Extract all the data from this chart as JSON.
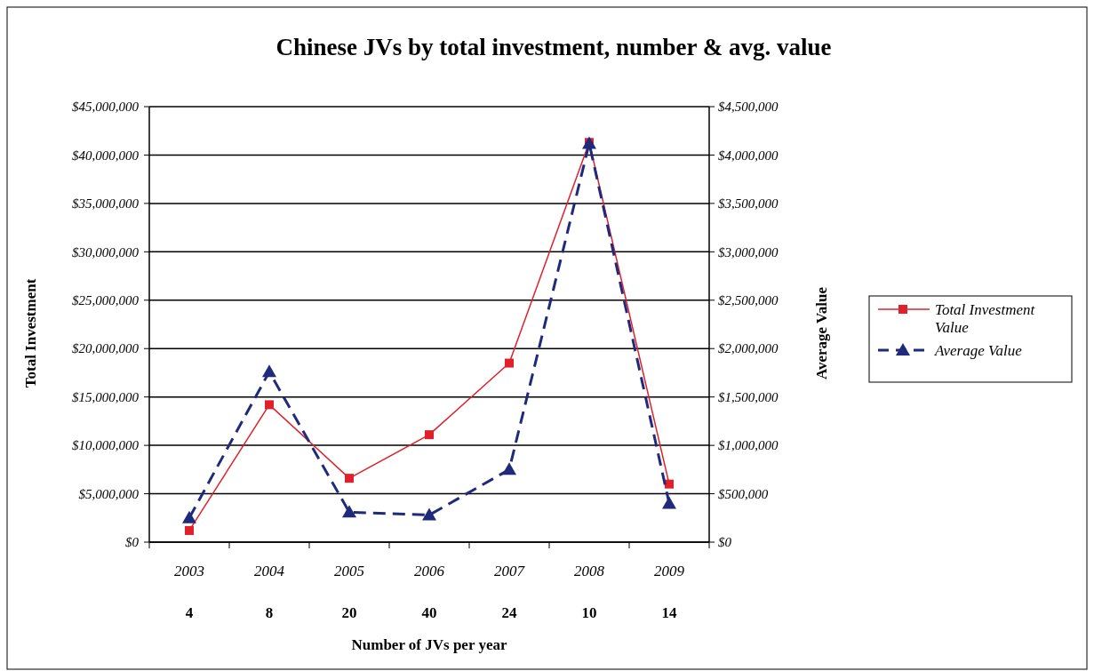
{
  "chart_data": {
    "type": "line",
    "title": "Chinese JVs by total investment, number & avg. value",
    "xlabel": "Number of JVs per year",
    "ylabel": "Total Investment",
    "y2label": "Average Value",
    "categories": [
      "2003",
      "2004",
      "2005",
      "2006",
      "2007",
      "2008",
      "2009"
    ],
    "series": [
      {
        "name": "Total Investment Value",
        "color": "#e0202a",
        "values": [
          1200000,
          14200000,
          6600000,
          11100000,
          18500000,
          41300000,
          6000000
        ],
        "marker": "square",
        "line_style": "solid"
      },
      {
        "name": "Average Value",
        "color": "#1f2a7a",
        "values": [
          250000,
          1760000,
          310000,
          280000,
          750000,
          4120000,
          400000
        ],
        "marker": "triangle",
        "line_style": "dashed",
        "axis": "y2"
      }
    ],
    "ylim": [
      0,
      45000000
    ],
    "yticks": [
      {
        "value": 0,
        "label": "$0"
      },
      {
        "value": 5000000,
        "label": "$5,000,000"
      },
      {
        "value": 10000000,
        "label": "$10,000,000"
      },
      {
        "value": 15000000,
        "label": "$15,000,000"
      },
      {
        "value": 20000000,
        "label": "$20,000,000"
      },
      {
        "value": 25000000,
        "label": "$25,000,000"
      },
      {
        "value": 30000000,
        "label": "$30,000,000"
      },
      {
        "value": 35000000,
        "label": "$35,000,000"
      },
      {
        "value": 40000000,
        "label": "$40,000,000"
      },
      {
        "value": 45000000,
        "label": "$45,000,000"
      }
    ],
    "y2lim": [
      0,
      4500000
    ],
    "y2ticks": [
      {
        "value": 0,
        "label": "$0"
      },
      {
        "value": 500000,
        "label": "$500,000"
      },
      {
        "value": 1000000,
        "label": "$1,000,000"
      },
      {
        "value": 1500000,
        "label": "$1,500,000"
      },
      {
        "value": 2000000,
        "label": "$2,000,000"
      },
      {
        "value": 2500000,
        "label": "$2,500,000"
      },
      {
        "value": 3000000,
        "label": "$3,000,000"
      },
      {
        "value": 3500000,
        "label": "$3,500,000"
      },
      {
        "value": 4000000,
        "label": "$4,000,000"
      },
      {
        "value": 4500000,
        "label": "$4,500,000"
      }
    ],
    "annotations": [
      "4",
      "8",
      "20",
      "40",
      "24",
      "10",
      "14"
    ],
    "grid": "y",
    "legend": "right"
  }
}
